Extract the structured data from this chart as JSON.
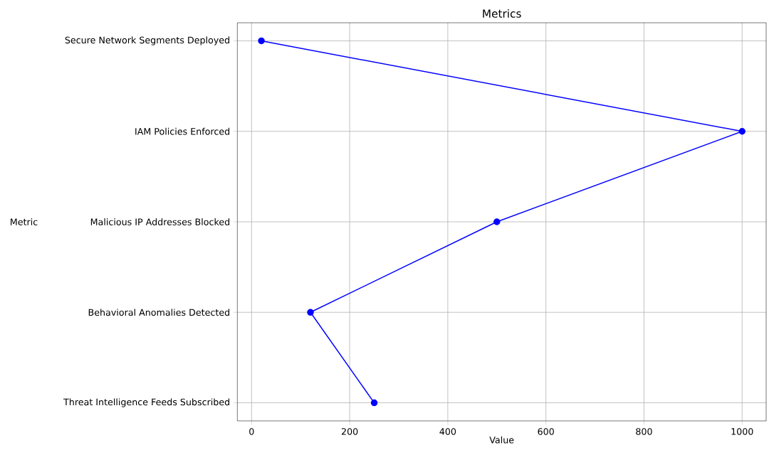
{
  "chart_data": {
    "type": "line",
    "orientation": "horizontal",
    "title": "Metrics",
    "xlabel": "Value",
    "ylabel": "Metric",
    "categories": [
      "Secure Network Segments Deployed",
      "IAM Policies Enforced",
      "Malicious IP Addresses Blocked",
      "Behavioral Anomalies Detected",
      "Threat Intelligence Feeds Subscribed"
    ],
    "values": [
      20,
      1000,
      500,
      120,
      250
    ],
    "color": "#0000ff",
    "marker": "circle",
    "line_style": "solid",
    "xlim": [
      -29,
      1049
    ],
    "xticks": [
      0,
      200,
      400,
      600,
      800,
      1000
    ],
    "grid": true
  }
}
